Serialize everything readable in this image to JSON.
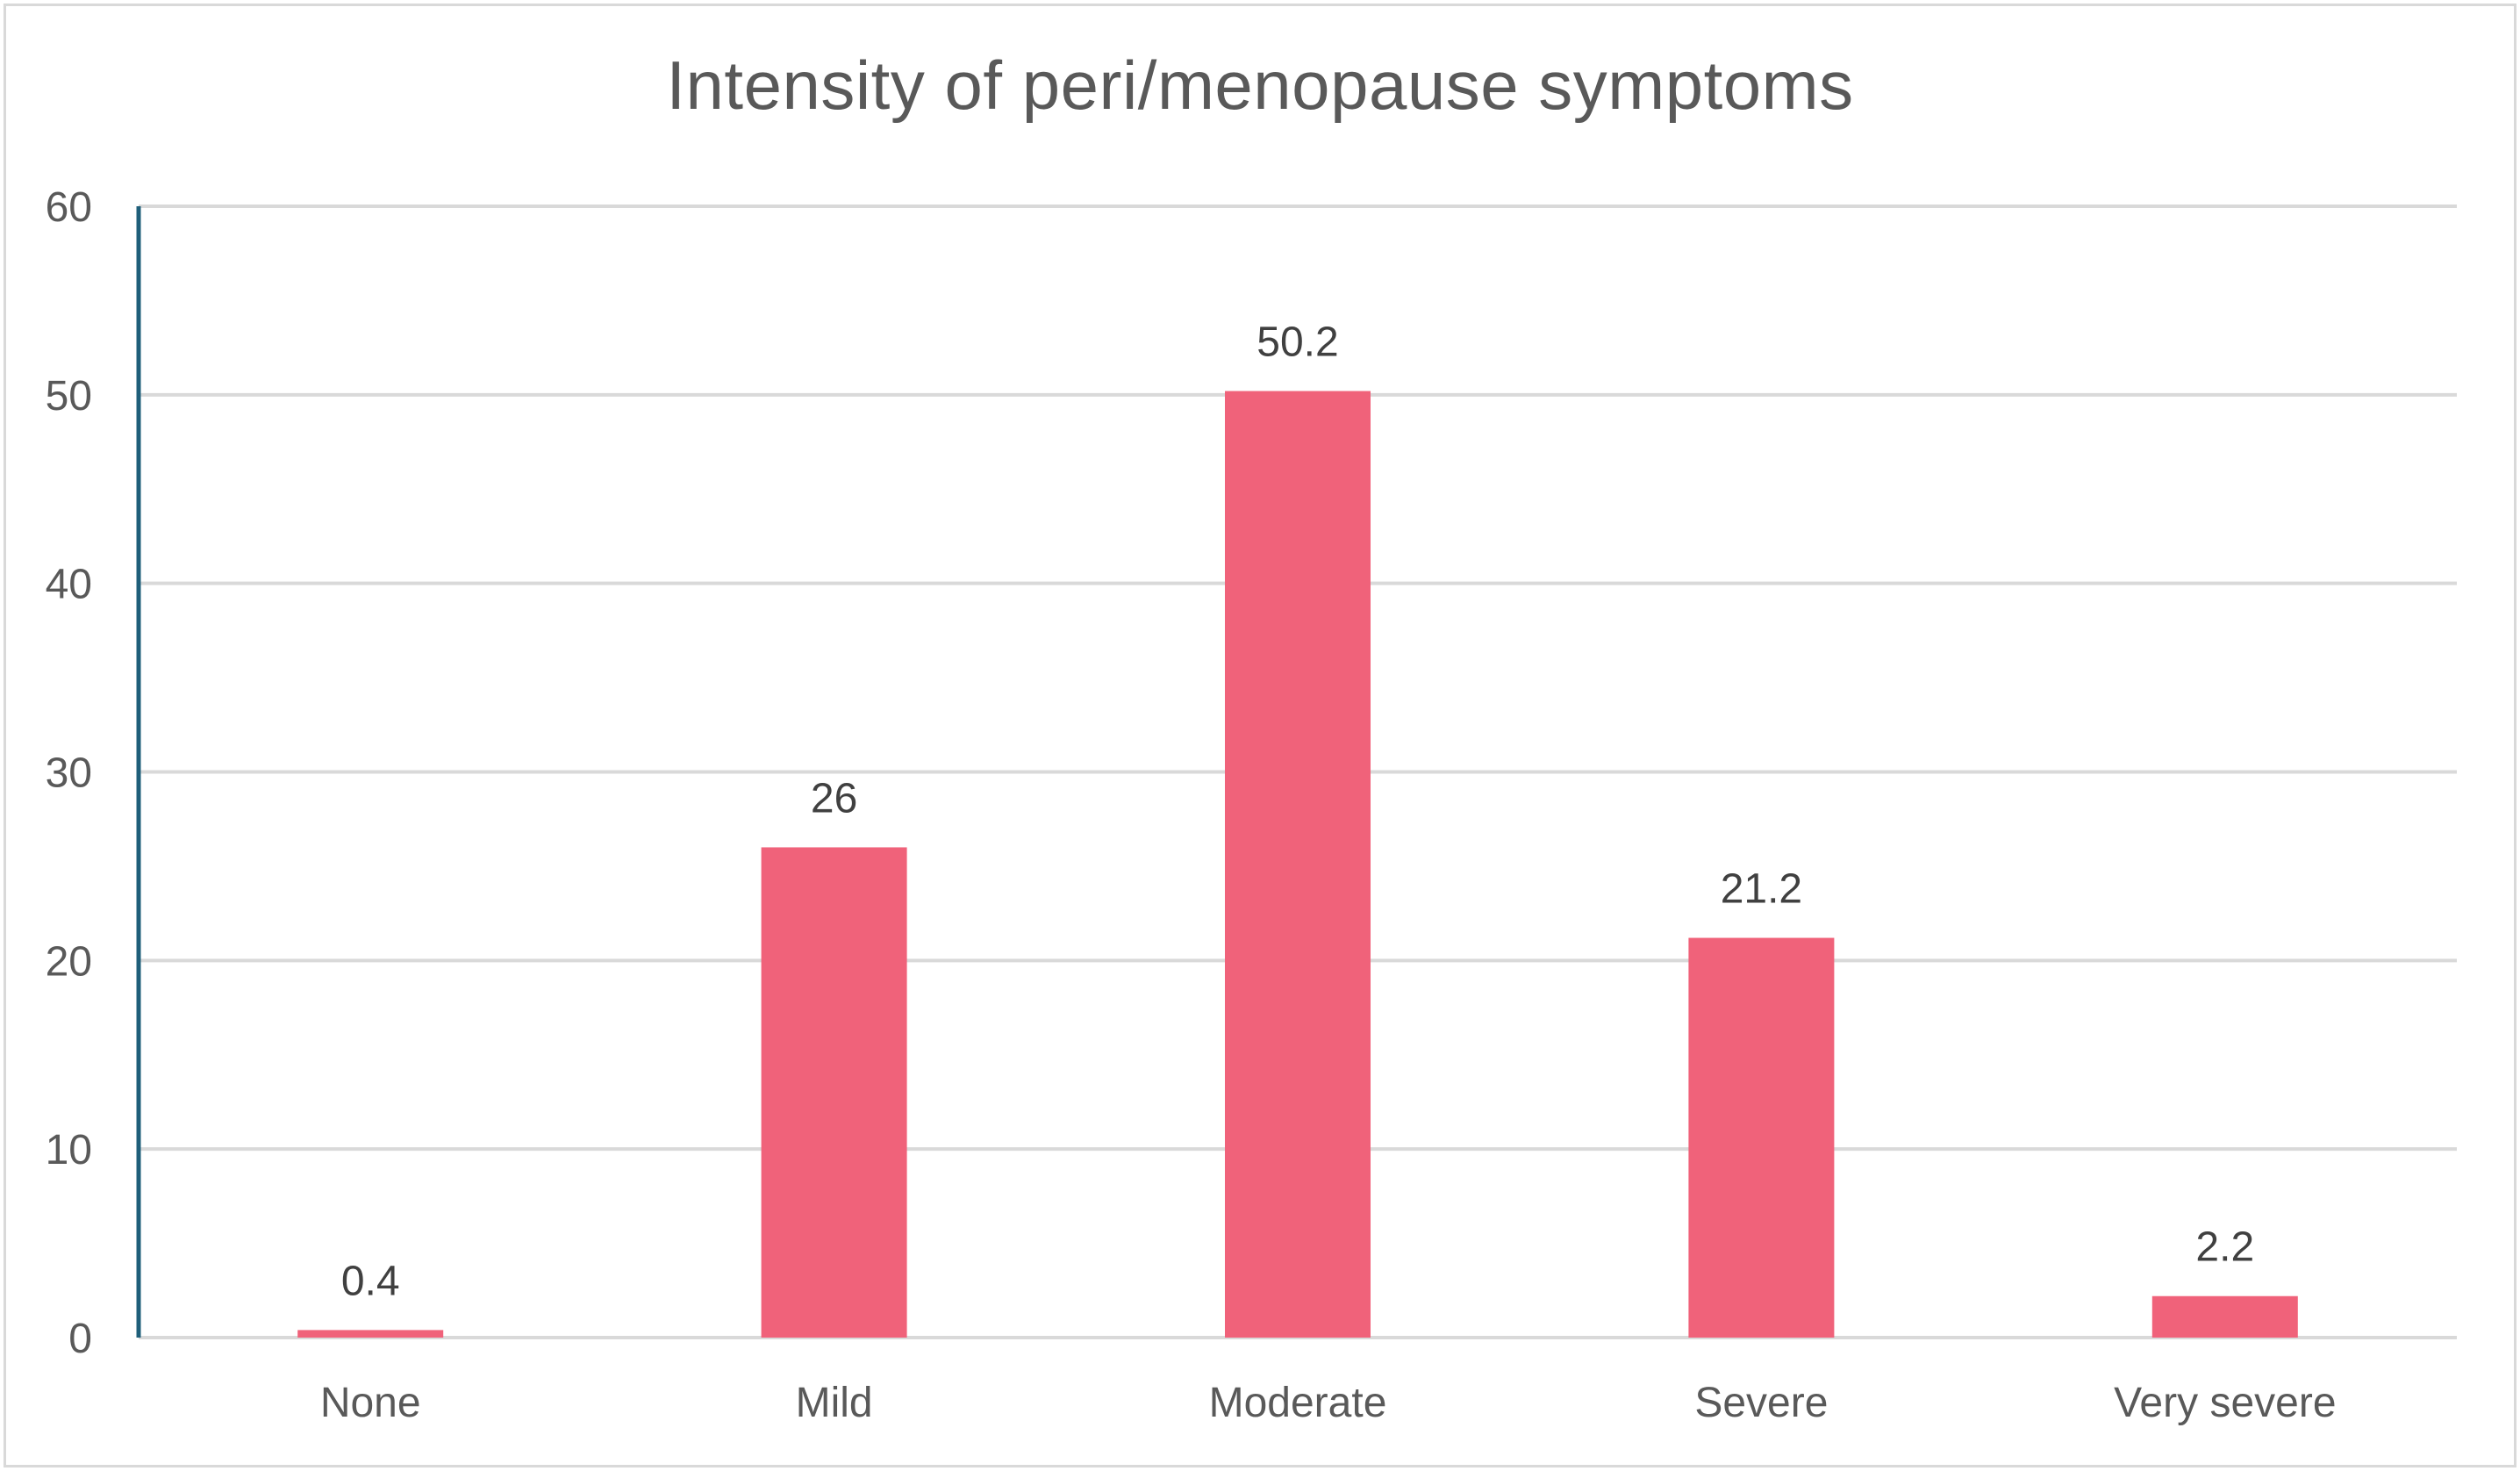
{
  "chart_data": {
    "type": "bar",
    "title": "Intensity of peri/menopause symptoms",
    "xlabel": "",
    "ylabel": "",
    "categories": [
      "None",
      "Mild",
      "Moderate",
      "Severe",
      "Very severe"
    ],
    "values": [
      0.4,
      26,
      50.2,
      21.2,
      2.2
    ],
    "data_labels": [
      "0.4",
      "26",
      "50.2",
      "21.2",
      "2.2"
    ],
    "ylim": [
      0,
      60
    ],
    "yticks": [
      0,
      10,
      20,
      30,
      40,
      50,
      60
    ],
    "ytick_labels": [
      "0",
      "10",
      "20",
      "30",
      "40",
      "50",
      "60"
    ],
    "grid": true,
    "legend": "none",
    "colors": {
      "bar": "#f0627a",
      "gridline": "#d9d9d9",
      "y_axis_line": "#1f5f7a",
      "text": "#595959",
      "data_label_text": "#404040"
    }
  }
}
